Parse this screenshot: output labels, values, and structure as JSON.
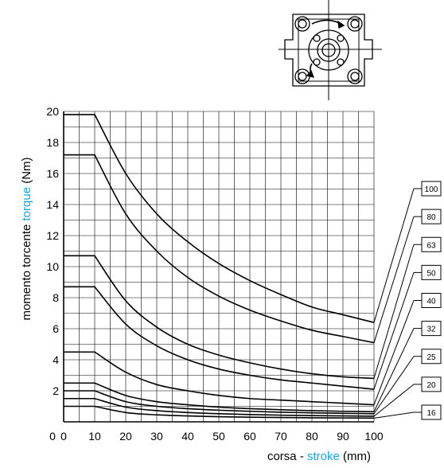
{
  "chart_data": {
    "type": "line",
    "xlabel": {
      "prefix": "corsa - ",
      "highlight": "stroke",
      "suffix": " (mm)"
    },
    "ylabel": {
      "prefix": "momento torcente  ",
      "highlight": "torque",
      "suffix": "  (Nm)"
    },
    "xlim": [
      0,
      100
    ],
    "ylim": [
      0,
      20
    ],
    "x_ticks": [
      0,
      10,
      20,
      30,
      40,
      50,
      60,
      70,
      80,
      90,
      100
    ],
    "y_ticks": [
      2,
      4,
      6,
      8,
      10,
      12,
      14,
      16,
      18,
      20
    ],
    "grid": true,
    "x": [
      0,
      10,
      20,
      30,
      40,
      50,
      60,
      70,
      80,
      90,
      100
    ],
    "series": [
      {
        "name": "100",
        "values": [
          19.8,
          19.8,
          16.0,
          13.4,
          11.6,
          10.2,
          9.1,
          8.2,
          7.4,
          6.9,
          6.4
        ]
      },
      {
        "name": "80",
        "values": [
          17.2,
          17.2,
          13.4,
          11.0,
          9.3,
          8.1,
          7.2,
          6.5,
          5.9,
          5.5,
          5.1
        ]
      },
      {
        "name": "63",
        "values": [
          10.7,
          10.7,
          7.8,
          6.1,
          5.0,
          4.3,
          3.8,
          3.4,
          3.1,
          2.9,
          2.8
        ]
      },
      {
        "name": "50",
        "values": [
          8.7,
          8.7,
          6.3,
          4.9,
          4.0,
          3.4,
          3.0,
          2.7,
          2.5,
          2.3,
          2.1
        ]
      },
      {
        "name": "40",
        "values": [
          4.5,
          4.5,
          3.2,
          2.4,
          2.0,
          1.7,
          1.5,
          1.4,
          1.3,
          1.2,
          1.1
        ]
      },
      {
        "name": "32",
        "values": [
          2.5,
          2.5,
          1.7,
          1.3,
          1.1,
          0.95,
          0.85,
          0.78,
          0.72,
          0.68,
          0.65
        ]
      },
      {
        "name": "25",
        "values": [
          2.0,
          2.0,
          1.3,
          1.0,
          0.85,
          0.75,
          0.68,
          0.62,
          0.58,
          0.55,
          0.52
        ]
      },
      {
        "name": "20",
        "values": [
          1.5,
          1.5,
          0.95,
          0.72,
          0.6,
          0.52,
          0.47,
          0.43,
          0.4,
          0.38,
          0.36
        ]
      },
      {
        "name": "16",
        "values": [
          1.0,
          1.0,
          0.6,
          0.45,
          0.38,
          0.33,
          0.3,
          0.28,
          0.26,
          0.25,
          0.24
        ]
      }
    ]
  },
  "colors": {
    "highlight": "#1aa3e8",
    "line": "#000000",
    "grid": "#000000"
  },
  "icon": "cylinder-flange-drawing-icon"
}
